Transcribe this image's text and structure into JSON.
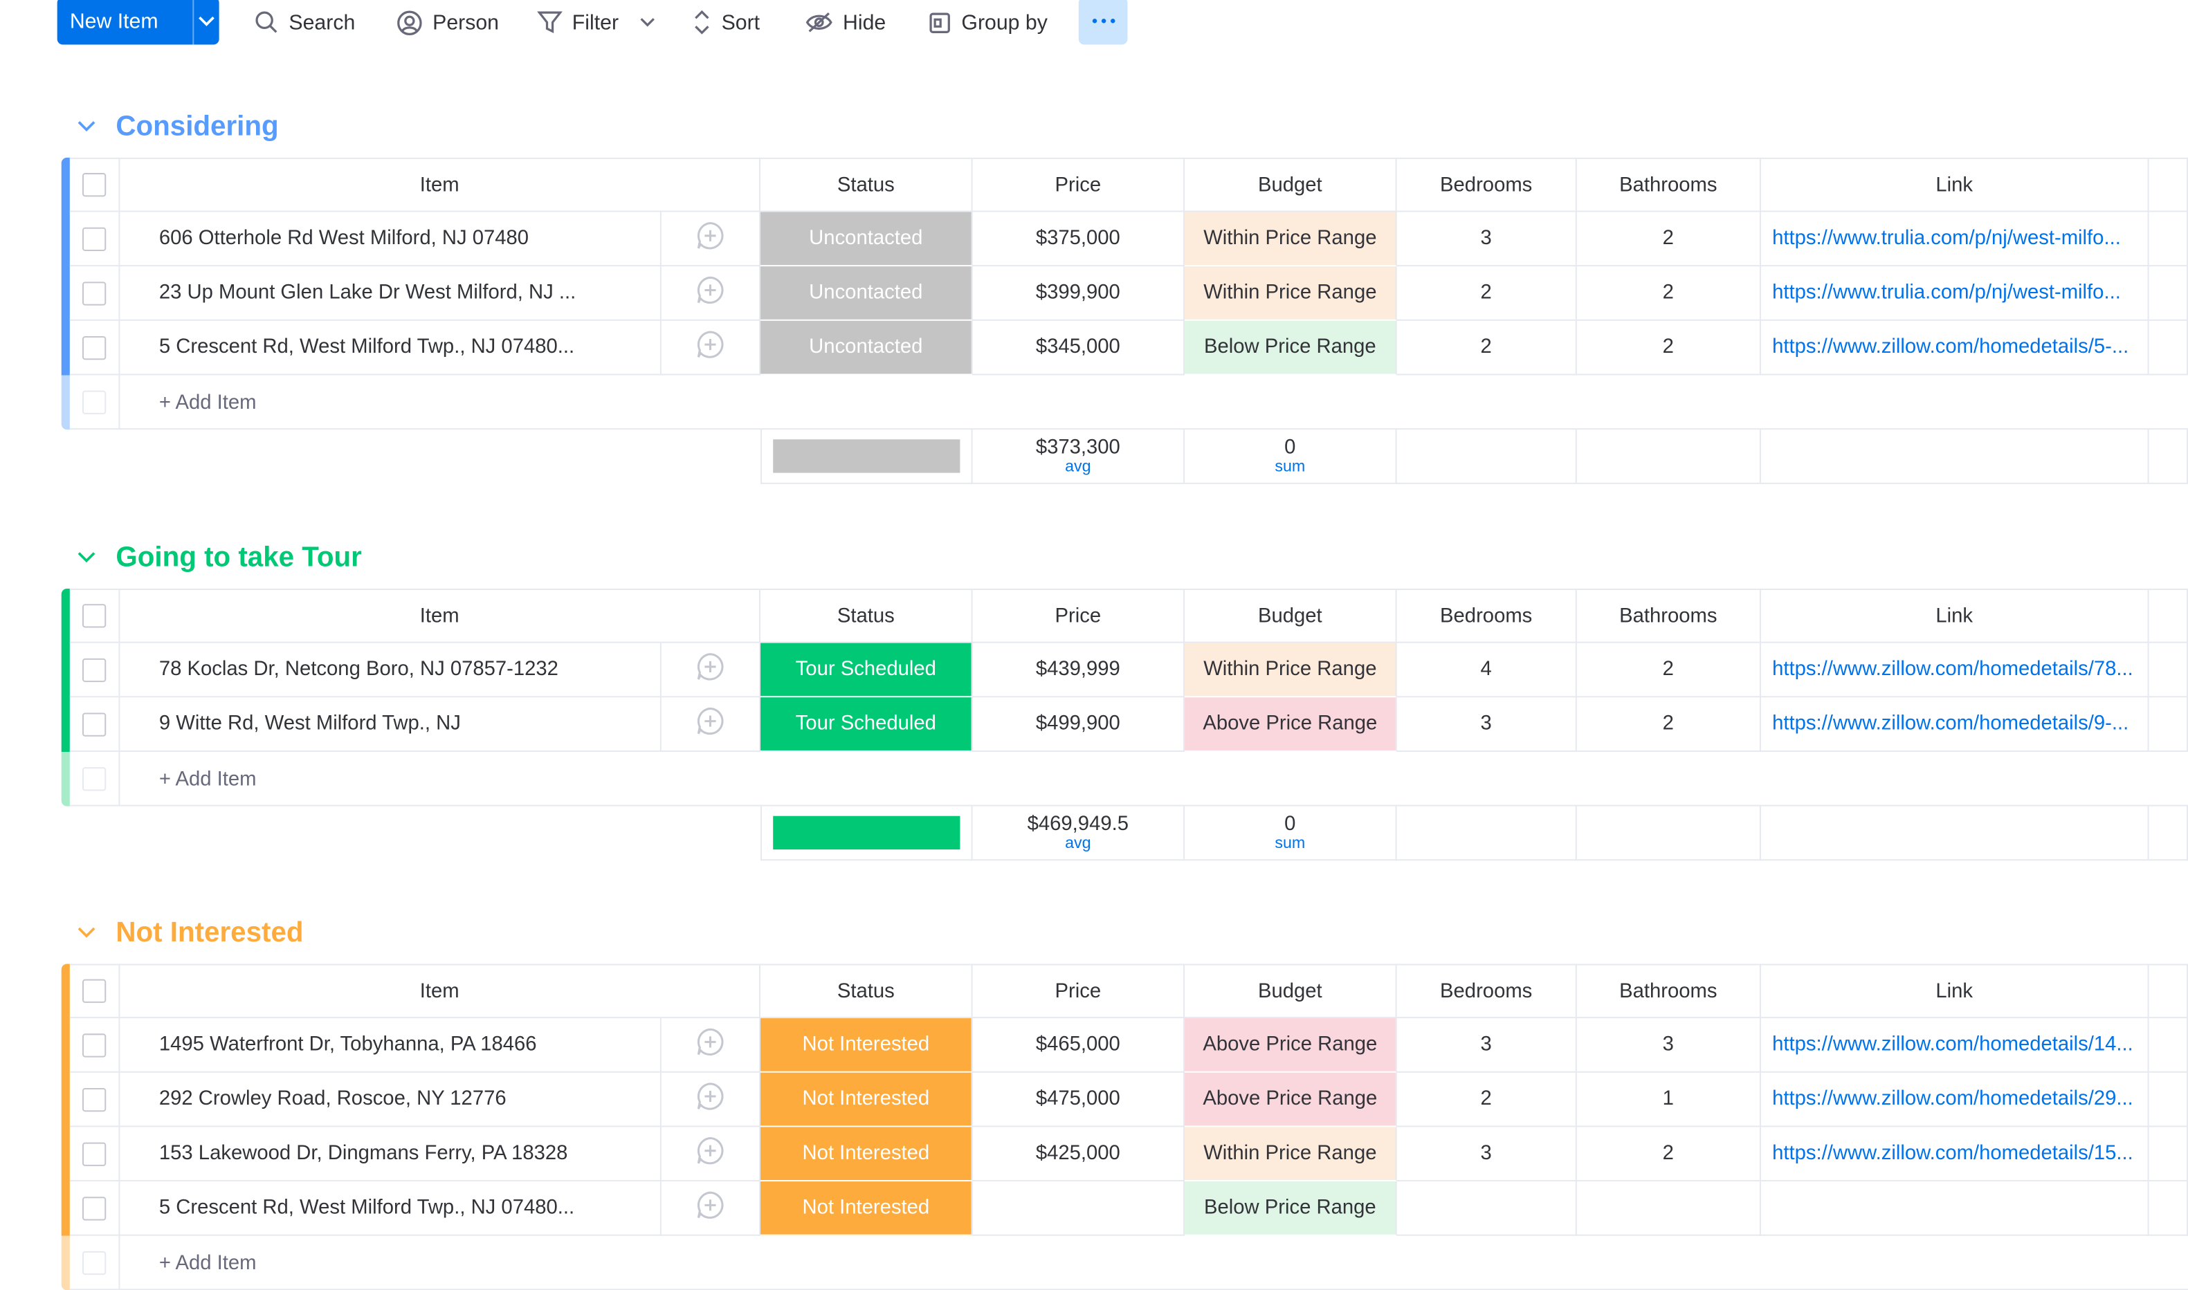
{
  "toolbar": {
    "new_item_label": "New Item",
    "search_label": "Search",
    "person_label": "Person",
    "filter_label": "Filter",
    "sort_label": "Sort",
    "hide_label": "Hide",
    "group_by_label": "Group by"
  },
  "columns": {
    "item": "Item",
    "status": "Status",
    "price": "Price",
    "budget": "Budget",
    "bedrooms": "Bedrooms",
    "bathrooms": "Bathrooms",
    "link": "Link"
  },
  "add_item_label": "+ Add Item",
  "colors": {
    "primary": "#0073ea",
    "considering": "#579bfc",
    "tour": "#00c875",
    "not_interested": "#fdab3d",
    "uncontacted": "#c4c4c4"
  },
  "groups": [
    {
      "title": "Considering",
      "rows": [
        {
          "item": "606 Otterhole Rd West Milford, NJ 07480",
          "status": "Uncontacted",
          "price": "$375,000",
          "budget": "Within Price Range",
          "bedrooms": "3",
          "bathrooms": "2",
          "link": "https://www.trulia.com/p/nj/west-milfo..."
        },
        {
          "item": "23 Up Mount Glen Lake Dr West Milford, NJ ...",
          "status": "Uncontacted",
          "price": "$399,900",
          "budget": "Within Price Range",
          "bedrooms": "2",
          "bathrooms": "2",
          "link": "https://www.trulia.com/p/nj/west-milfo..."
        },
        {
          "item": "5 Crescent Rd, West Milford Twp., NJ 07480...",
          "status": "Uncontacted",
          "price": "$345,000",
          "budget": "Below Price Range",
          "bedrooms": "2",
          "bathrooms": "2",
          "link": "https://www.zillow.com/homedetails/5-..."
        }
      ],
      "summary": {
        "price": "$373,300",
        "price_agg": "avg",
        "budget": "0",
        "budget_agg": "sum"
      }
    },
    {
      "title": "Going to take Tour",
      "rows": [
        {
          "item": "78 Koclas Dr, Netcong Boro, NJ 07857-1232",
          "status": "Tour Scheduled",
          "price": "$439,999",
          "budget": "Within Price Range",
          "bedrooms": "4",
          "bathrooms": "2",
          "link": "https://www.zillow.com/homedetails/78..."
        },
        {
          "item": "9 Witte Rd, West Milford Twp., NJ",
          "status": "Tour Scheduled",
          "price": "$499,900",
          "budget": "Above Price Range",
          "bedrooms": "3",
          "bathrooms": "2",
          "link": "https://www.zillow.com/homedetails/9-..."
        }
      ],
      "summary": {
        "price": "$469,949.5",
        "price_agg": "avg",
        "budget": "0",
        "budget_agg": "sum"
      }
    },
    {
      "title": "Not Interested",
      "rows": [
        {
          "item": "1495 Waterfront Dr, Tobyhanna, PA 18466",
          "status": "Not Interested",
          "price": "$465,000",
          "budget": "Above Price Range",
          "bedrooms": "3",
          "bathrooms": "3",
          "link": "https://www.zillow.com/homedetails/14..."
        },
        {
          "item": "292 Crowley Road, Roscoe, NY 12776",
          "status": "Not Interested",
          "price": "$475,000",
          "budget": "Above Price Range",
          "bedrooms": "2",
          "bathrooms": "1",
          "link": "https://www.zillow.com/homedetails/29..."
        },
        {
          "item": "153 Lakewood Dr, Dingmans Ferry, PA 18328",
          "status": "Not Interested",
          "price": "$425,000",
          "budget": "Within Price Range",
          "bedrooms": "3",
          "bathrooms": "2",
          "link": "https://www.zillow.com/homedetails/15..."
        },
        {
          "item": "5 Crescent Rd, West Milford Twp., NJ 07480...",
          "status": "Not Interested",
          "price": "",
          "budget": "Below Price Range",
          "bedrooms": "",
          "bathrooms": "",
          "link": ""
        }
      ]
    }
  ]
}
